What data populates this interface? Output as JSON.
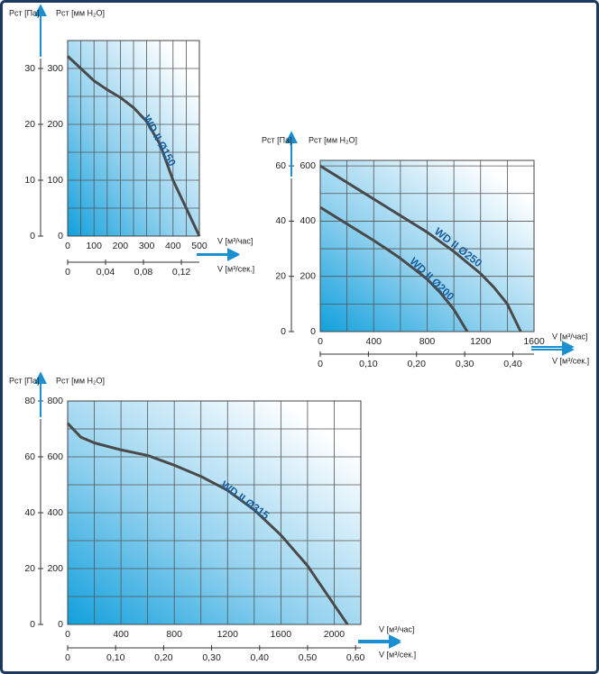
{
  "chart_data": [
    {
      "type": "line",
      "x": [
        0,
        50,
        100,
        150,
        200,
        250,
        300,
        350,
        400,
        450,
        500
      ],
      "series": [
        {
          "name": "WD II Ø150",
          "color": "#4a4a4a",
          "values": [
            322,
            300,
            278,
            262,
            248,
            230,
            205,
            165,
            100,
            50,
            0
          ]
        }
      ],
      "xlim": [
        0,
        500
      ],
      "xticks": [
        0,
        100,
        200,
        300,
        400,
        500
      ],
      "x_label": "V [м³/час]",
      "x2lim": [
        0,
        0.139
      ],
      "x2ticks": [
        0,
        {
          "value": 0.04,
          "label": "0,04"
        },
        {
          "value": 0.08,
          "label": "0,08"
        },
        {
          "value": 0.12,
          "label": "0,12"
        }
      ],
      "x2_label": "V [м³/сек.]",
      "ylim": [
        0,
        350
      ],
      "yticks": [
        0,
        100,
        200,
        300
      ],
      "y_label": "Pст [мм H₂O]",
      "y2lim": [
        0,
        35
      ],
      "y2ticks": [
        0,
        10,
        20,
        30
      ],
      "y2_label": "Pст [Па]",
      "grid": true
    },
    {
      "type": "line",
      "x": [
        0,
        100,
        200,
        300,
        400,
        500,
        600,
        700,
        800,
        900,
        1000,
        1100,
        1200,
        1300,
        1400,
        1500,
        1600
      ],
      "series": [
        {
          "name": "WD II Ø250",
          "color": "#4a4a4a",
          "values": [
            600,
            570,
            540,
            510,
            480,
            450,
            420,
            390,
            360,
            325,
            290,
            250,
            210,
            160,
            100,
            0,
            null
          ]
        },
        {
          "name": "WD II Ø200",
          "color": "#4a4a4a",
          "values": [
            450,
            420,
            390,
            360,
            330,
            298,
            265,
            228,
            190,
            140,
            80,
            0,
            null,
            null,
            null,
            null,
            null
          ]
        }
      ],
      "xlim": [
        0,
        1600
      ],
      "xticks": [
        0,
        400,
        800,
        1200,
        1600
      ],
      "x_label": "V [м³/час]",
      "x2lim": [
        0,
        0.444
      ],
      "x2ticks": [
        0,
        {
          "value": 0.1,
          "label": "0,10"
        },
        {
          "value": 0.2,
          "label": "0,20"
        },
        {
          "value": 0.3,
          "label": "0,30"
        },
        {
          "value": 0.4,
          "label": "0,40"
        }
      ],
      "x2_label": "V [м³/сек.]",
      "ylim": [
        0,
        620
      ],
      "yticks": [
        0,
        200,
        400,
        600
      ],
      "y_label": "Pст [мм H₂O]",
      "y2lim": [
        0,
        62
      ],
      "y2ticks": [
        0,
        20,
        40,
        60
      ],
      "y2_label": "Pст [Па]",
      "grid": true
    },
    {
      "type": "line",
      "x": [
        0,
        100,
        200,
        400,
        600,
        800,
        1000,
        1200,
        1400,
        1600,
        1800,
        2000,
        2100
      ],
      "series": [
        {
          "name": "WD II Ø315",
          "color": "#4a4a4a",
          "values": [
            720,
            670,
            650,
            625,
            605,
            570,
            530,
            480,
            410,
            320,
            210,
            70,
            0
          ]
        }
      ],
      "xlim": [
        0,
        2200
      ],
      "xticks": [
        0,
        400,
        800,
        1200,
        1600,
        2000
      ],
      "x_label": "V [м³/час]",
      "x2lim": [
        0,
        0.611
      ],
      "x2ticks": [
        0,
        {
          "value": 0.1,
          "label": "0,10"
        },
        {
          "value": 0.2,
          "label": "0,20"
        },
        {
          "value": 0.3,
          "label": "0,30"
        },
        {
          "value": 0.4,
          "label": "0,40"
        },
        {
          "value": 0.5,
          "label": "0,50"
        },
        {
          "value": 0.6,
          "label": "0,60"
        }
      ],
      "x2_label": "V [м³/сек.]",
      "ylim": [
        0,
        800
      ],
      "yticks": [
        0,
        200,
        400,
        600,
        800
      ],
      "y_label": "Pст [мм H₂O]",
      "y2lim": [
        0,
        80
      ],
      "y2ticks": [
        0,
        20,
        40,
        60,
        80
      ],
      "y2_label": "Pст [Па]",
      "grid": true
    }
  ]
}
